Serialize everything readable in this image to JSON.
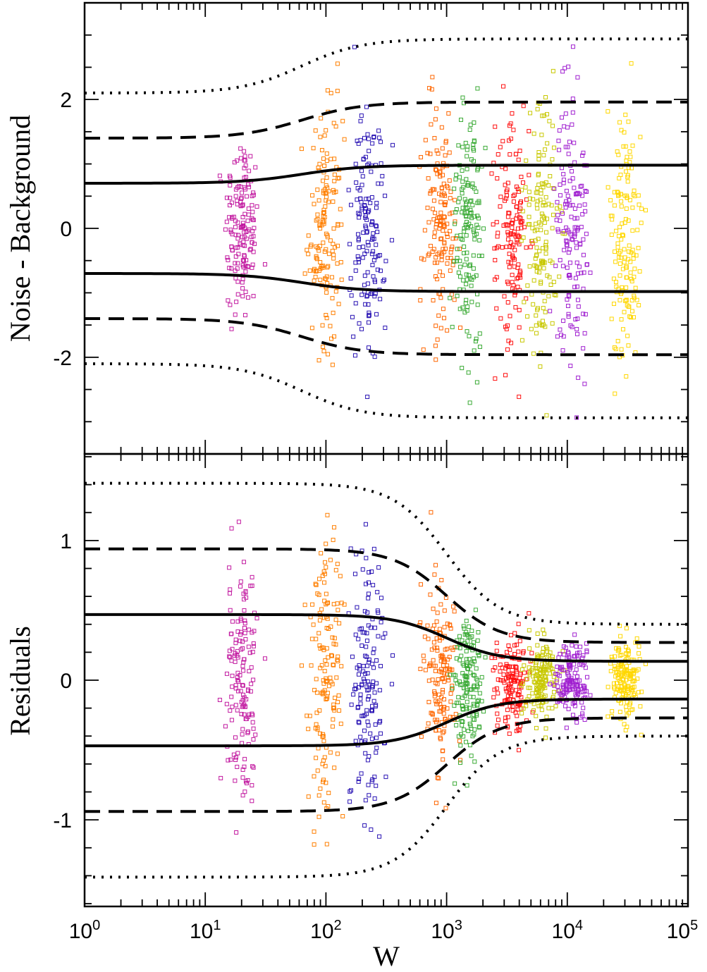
{
  "chart_data": [
    {
      "type": "scatter",
      "title": "",
      "xlabel": "W",
      "ylabel": "Noise - Background",
      "xscale": "log",
      "xlim": [
        1,
        100000
      ],
      "ylim": [
        -3.5,
        3.5
      ],
      "x_tick_labels": [
        {
          "base": "10",
          "exp": "0"
        },
        {
          "base": "10",
          "exp": "1"
        },
        {
          "base": "10",
          "exp": "2"
        },
        {
          "base": "10",
          "exp": "3"
        },
        {
          "base": "10",
          "exp": "4"
        },
        {
          "base": "10",
          "exp": "5"
        }
      ],
      "y_ticks": [
        {
          "value": 2,
          "label": "2"
        },
        {
          "value": 0,
          "label": "0"
        },
        {
          "value": -2,
          "label": "-2"
        }
      ],
      "series": [
        {
          "name": "W≈20",
          "color": "#c21aa0",
          "x_center": 20,
          "spread": 1.0
        },
        {
          "name": "W≈100",
          "color": "#ff7f00",
          "x_center": 100,
          "spread": 1.0
        },
        {
          "name": "W≈220",
          "color": "#2a14b4",
          "x_center": 220,
          "spread": 1.0
        },
        {
          "name": "W≈900",
          "color": "#ff6600",
          "x_center": 900,
          "spread": 1.0
        },
        {
          "name": "W≈1500 (green)",
          "color": "#3aaa35",
          "x_center": 1500,
          "spread": 1.0
        },
        {
          "name": "W≈3500",
          "color": "#ff1010",
          "x_center": 3500,
          "spread": 1.0
        },
        {
          "name": "W≈6000",
          "color": "#c8c800",
          "x_center": 6000,
          "spread": 1.0
        },
        {
          "name": "W≈11000",
          "color": "#a020d0",
          "x_center": 11000,
          "spread": 1.0
        },
        {
          "name": "W≈30000",
          "color": "#ffd700",
          "x_center": 30000,
          "spread": 1.0
        }
      ],
      "envelopes": [
        {
          "style": "solid",
          "low_w": 0.7,
          "high_w": 0.98
        },
        {
          "style": "dashed",
          "low_w": 1.4,
          "high_w": 1.96
        },
        {
          "style": "dotted",
          "low_w": 2.1,
          "high_w": 2.94
        }
      ]
    },
    {
      "type": "scatter",
      "title": "",
      "xlabel": "W",
      "ylabel": "Residuals",
      "xscale": "log",
      "xlim": [
        1,
        100000
      ],
      "ylim": [
        -1.62,
        1.62
      ],
      "y_ticks": [
        {
          "value": 1,
          "label": "1"
        },
        {
          "value": 0,
          "label": "0"
        },
        {
          "value": -1,
          "label": "-1"
        }
      ],
      "envelopes": [
        {
          "style": "solid",
          "low_w": 0.47,
          "high_w": 0.135
        },
        {
          "style": "dashed",
          "low_w": 0.94,
          "high_w": 0.27
        },
        {
          "style": "dotted",
          "low_w": 1.41,
          "high_w": 0.4
        }
      ]
    }
  ]
}
